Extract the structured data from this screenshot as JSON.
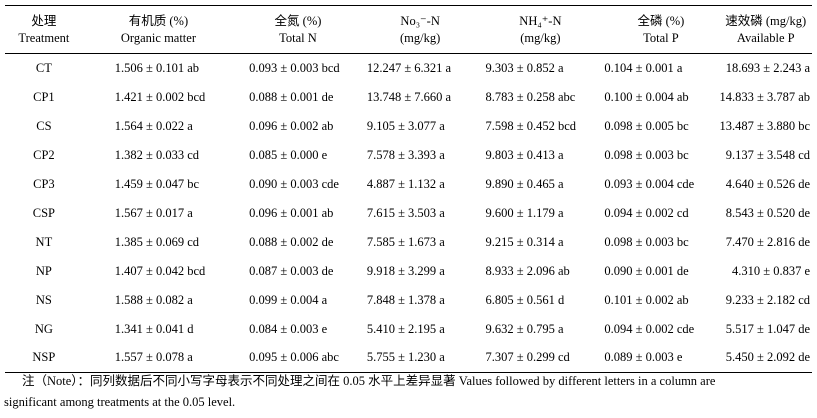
{
  "table": {
    "headers": [
      {
        "zh": "处理",
        "en": "Treatment"
      },
      {
        "zh": "有机质 (%)",
        "en": "Organic matter"
      },
      {
        "zh": "全氮 (%)",
        "en": "Total N"
      },
      {
        "zh": "No₃⁻-N",
        "en": "(mg/kg)"
      },
      {
        "zh": "NH₄⁺-N",
        "en": "(mg/kg)"
      },
      {
        "zh": "全磷 (%)",
        "en": "Total P"
      },
      {
        "zh": "速效磷 (mg/kg)",
        "en": "Available P"
      }
    ],
    "rows": [
      [
        "CT",
        "1.506 ± 0.101 ab",
        "0.093 ± 0.003 bcd",
        "12.247 ± 6.321 a",
        "9.303 ± 0.852 a",
        "0.104 ± 0.001 a",
        "18.693 ± 2.243 a"
      ],
      [
        "CP1",
        "1.421 ± 0.002 bcd",
        "0.088 ± 0.001 de",
        "13.748 ± 7.660 a",
        "8.783 ± 0.258 abc",
        "0.100 ± 0.004 ab",
        "14.833 ± 3.787 ab"
      ],
      [
        "CS",
        "1.564 ± 0.022 a",
        "0.096 ± 0.002 ab",
        "9.105 ± 3.077 a",
        "7.598 ± 0.452 bcd",
        "0.098 ± 0.005 bc",
        "13.487 ± 3.880 bc"
      ],
      [
        "CP2",
        "1.382 ± 0.033 cd",
        "0.085 ± 0.000 e",
        "7.578 ± 3.393 a",
        "9.803 ± 0.413 a",
        "0.098 ± 0.003 bc",
        "9.137 ± 3.548 cd"
      ],
      [
        "CP3",
        "1.459 ± 0.047 bc",
        "0.090 ± 0.003 cde",
        "4.887 ± 1.132 a",
        "9.890 ± 0.465 a",
        "0.093 ± 0.004 cde",
        "4.640 ± 0.526 de"
      ],
      [
        "CSP",
        "1.567 ± 0.017 a",
        "0.096 ± 0.001 ab",
        "7.615 ± 3.503 a",
        "9.600 ± 1.179 a",
        "0.094 ± 0.002 cd",
        "8.543 ± 0.520 de"
      ],
      [
        "NT",
        "1.385 ± 0.069 cd",
        "0.088 ± 0.002 de",
        "7.585 ± 1.673 a",
        "9.215 ± 0.314 a",
        "0.098 ± 0.003 bc",
        "7.470 ± 2.816 de"
      ],
      [
        "NP",
        "1.407 ± 0.042 bcd",
        "0.087 ± 0.003 de",
        "9.918 ± 3.299 a",
        "8.933 ± 2.096 ab",
        "0.090 ± 0.001 de",
        "4.310 ± 0.837 e"
      ],
      [
        "NS",
        "1.588 ± 0.082 a",
        "0.099 ± 0.004 a",
        "7.848 ± 1.378 a",
        "6.805 ± 0.561 d",
        "0.101 ± 0.002 ab",
        "9.233 ± 2.182 cd"
      ],
      [
        "NG",
        "1.341 ± 0.041 d",
        "0.084 ± 0.003 e",
        "5.410 ± 2.195 a",
        "9.632 ± 0.795 a",
        "0.094 ± 0.002 cde",
        "5.517 ± 1.047 de"
      ],
      [
        "NSP",
        "1.557 ± 0.078 a",
        "0.095 ± 0.006 abc",
        "5.755 ± 1.230 a",
        "7.307 ± 0.299 cd",
        "0.089 ± 0.003 e",
        "5.450 ± 2.092 de"
      ]
    ]
  },
  "note": {
    "line1": "注（Note）：同列数据后不同小写字母表示不同处理之间在 0.05 水平上差异显著 Values followed by different letters in a column are",
    "line2": "significant among treatments at the 0.05 level."
  }
}
